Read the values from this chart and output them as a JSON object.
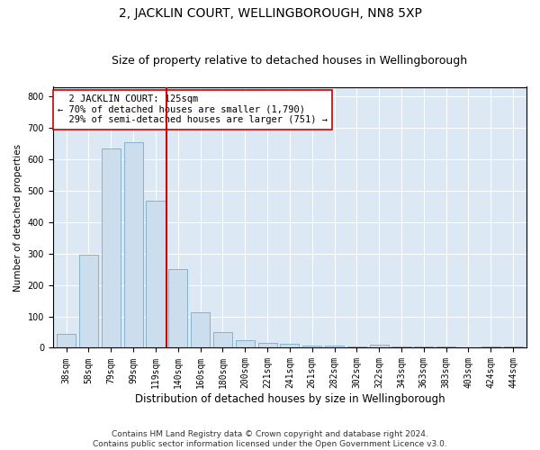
{
  "title": "2, JACKLIN COURT, WELLINGBOROUGH, NN8 5XP",
  "subtitle": "Size of property relative to detached houses in Wellingborough",
  "xlabel": "Distribution of detached houses by size in Wellingborough",
  "ylabel": "Number of detached properties",
  "categories": [
    "38sqm",
    "58sqm",
    "79sqm",
    "99sqm",
    "119sqm",
    "140sqm",
    "160sqm",
    "180sqm",
    "200sqm",
    "221sqm",
    "241sqm",
    "261sqm",
    "282sqm",
    "302sqm",
    "322sqm",
    "343sqm",
    "363sqm",
    "383sqm",
    "403sqm",
    "424sqm",
    "444sqm"
  ],
  "values": [
    45,
    295,
    635,
    655,
    468,
    250,
    112,
    50,
    25,
    15,
    14,
    8,
    7,
    5,
    10,
    5,
    5,
    3,
    2,
    3,
    5
  ],
  "bar_color": "#ccdded",
  "bar_edge_color": "#7aaac8",
  "vline_x": 4.5,
  "vline_color": "#cc0000",
  "annotation_text": "  2 JACKLIN COURT: 125sqm\n← 70% of detached houses are smaller (1,790)\n  29% of semi-detached houses are larger (751) →",
  "annotation_box_color": "#ffffff",
  "annotation_box_edge_color": "#cc0000",
  "ylim": [
    0,
    830
  ],
  "yticks": [
    0,
    100,
    200,
    300,
    400,
    500,
    600,
    700,
    800
  ],
  "background_color": "#dce9f5",
  "footer_line1": "Contains HM Land Registry data © Crown copyright and database right 2024.",
  "footer_line2": "Contains public sector information licensed under the Open Government Licence v3.0.",
  "title_fontsize": 10,
  "subtitle_fontsize": 9,
  "xlabel_fontsize": 8.5,
  "ylabel_fontsize": 7.5,
  "tick_fontsize": 7,
  "annotation_fontsize": 7.5,
  "footer_fontsize": 6.5
}
